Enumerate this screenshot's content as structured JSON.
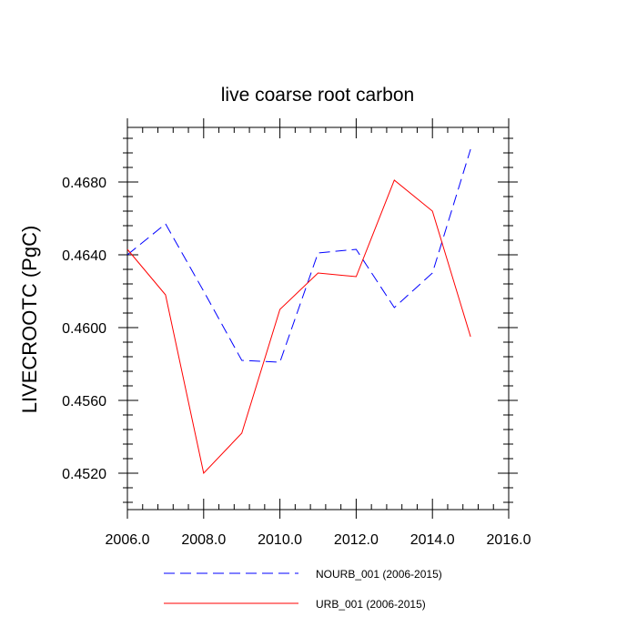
{
  "chart_data": {
    "type": "line",
    "title": "live coarse root carbon",
    "xlabel": "",
    "ylabel": "LIVECROOTC  (PgC)",
    "xlim": [
      2006,
      2016
    ],
    "ylim": [
      0.45,
      0.471
    ],
    "xticks": [
      2006,
      2008,
      2010,
      2012,
      2014,
      2016
    ],
    "xtick_labels": [
      "2006.0",
      "2008.0",
      "2010.0",
      "2012.0",
      "2014.0",
      "2016.0"
    ],
    "yticks": [
      0.452,
      0.456,
      0.46,
      0.464,
      0.468
    ],
    "ytick_labels": [
      "0.4520",
      "0.4560",
      "0.4600",
      "0.4640",
      "0.4680"
    ],
    "grid": false,
    "legend_position": "bottom",
    "series": [
      {
        "name": "NOURB_001 (2006-2015)",
        "color": "#0000ff",
        "dash": "dashed",
        "x": [
          2006,
          2007,
          2008,
          2009,
          2010,
          2011,
          2012,
          2013,
          2014,
          2015
        ],
        "values": [
          0.464,
          0.4657,
          0.462,
          0.4582,
          0.4581,
          0.4641,
          0.4643,
          0.4611,
          0.463,
          0.4698
        ]
      },
      {
        "name": "URB_001 (2006-2015)",
        "color": "#ff0000",
        "dash": "solid",
        "x": [
          2006,
          2007,
          2008,
          2009,
          2010,
          2011,
          2012,
          2013,
          2014,
          2015
        ],
        "values": [
          0.4643,
          0.4618,
          0.452,
          0.4542,
          0.461,
          0.463,
          0.4628,
          0.4681,
          0.4664,
          0.4595
        ]
      }
    ]
  }
}
